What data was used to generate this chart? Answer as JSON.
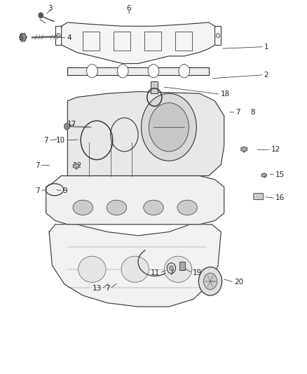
{
  "background_color": "#ffffff",
  "fig_width": 4.38,
  "fig_height": 5.33,
  "dpi": 100,
  "line_color": "#333333",
  "text_color": "#222222",
  "font_size": 7.5
}
